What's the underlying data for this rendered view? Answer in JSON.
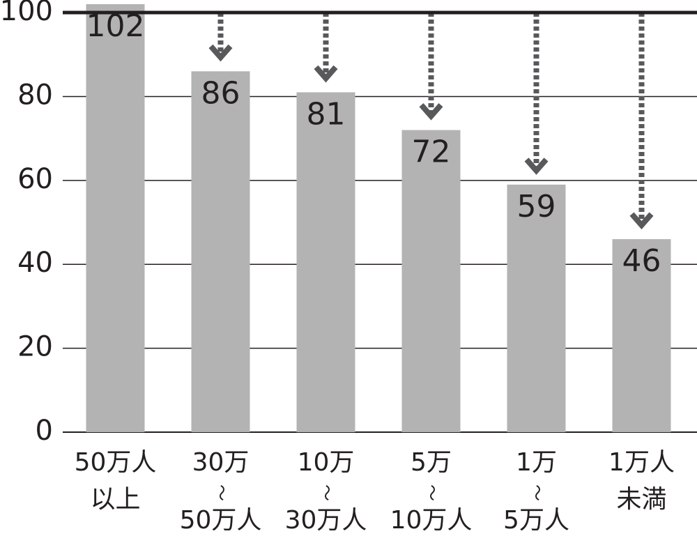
{
  "chart_data": {
    "type": "bar",
    "categories": [
      [
        "50万人",
        "以上"
      ],
      [
        "30万",
        "〜",
        "50万人"
      ],
      [
        "10万",
        "〜",
        "30万人"
      ],
      [
        "5万",
        "〜",
        "10万人"
      ],
      [
        "1万",
        "〜",
        "5万人"
      ],
      [
        "1万人",
        "未満"
      ]
    ],
    "values": [
      102,
      86,
      81,
      72,
      59,
      46
    ],
    "color": "#b3b3b3",
    "arrow_color": "#58595b",
    "ylim": [
      0,
      103
    ],
    "yticks": [
      0,
      20,
      40,
      60,
      80,
      100
    ],
    "grid": true,
    "reference_line": 100
  }
}
